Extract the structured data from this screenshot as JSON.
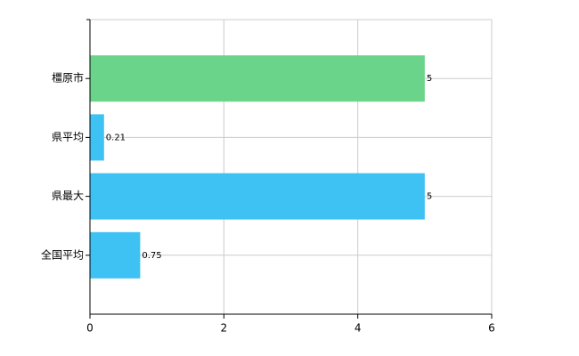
{
  "chart_data": {
    "type": "hbar",
    "categories": [
      "橿原市",
      "県平均",
      "県最大",
      "全国平均"
    ],
    "values": [
      5,
      0.21,
      5,
      0.75
    ],
    "colors": [
      "#6ad48b",
      "#3ec1f3",
      "#3ec1f3",
      "#3ec1f3"
    ],
    "xlim": [
      0,
      6
    ],
    "xticks": [
      0,
      2,
      4,
      6
    ],
    "grid": true
  }
}
